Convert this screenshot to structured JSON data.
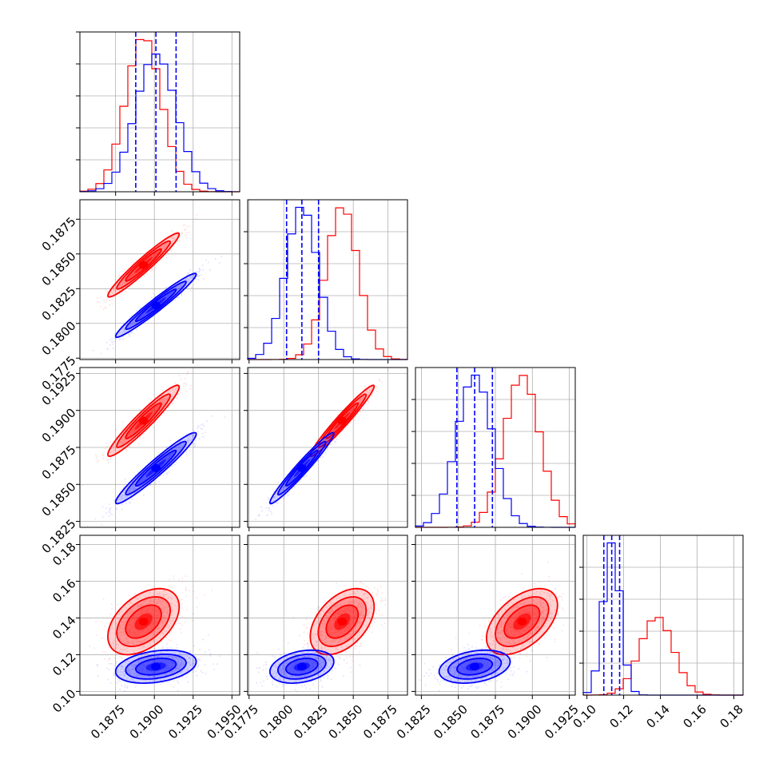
{
  "chart_data": {
    "type": "corner",
    "title": "",
    "grid": true,
    "colors": {
      "red": "#ff0000",
      "blue": "#0000ff",
      "frame": "#000000",
      "grid": "#b0b0b0"
    },
    "parameters": [
      {
        "range": [
          0.1852,
          0.1955
        ],
        "ticks": [
          0.1875,
          0.19,
          0.1925,
          0.195
        ],
        "tick_labels": [
          "0.1875",
          "0.1900",
          "0.1925",
          "0.1950"
        ],
        "y_ticks": [],
        "y_tick_labels": [],
        "blue": {
          "mean": 0.1901,
          "sd": 0.0013
        },
        "red": {
          "mean": 0.1893,
          "sd": 0.00115
        },
        "quantiles_blue": [
          0.1888,
          0.1901,
          0.1914
        ]
      },
      {
        "range": [
          0.1774,
          0.1889
        ],
        "ticks": [
          0.1775,
          0.18,
          0.1825,
          0.185,
          0.1875
        ],
        "tick_labels": [
          "0.1775",
          "0.1800",
          "0.1825",
          "0.1850",
          "0.1875"
        ],
        "y_ticks": [
          0.1775,
          0.18,
          0.1825,
          0.185,
          0.1875
        ],
        "y_tick_labels": [
          "0.1775",
          "0.1800",
          "0.1825",
          "0.1850",
          "0.1875"
        ],
        "blue": {
          "mean": 0.1813,
          "sd": 0.00115
        },
        "red": {
          "mean": 0.1842,
          "sd": 0.00115
        },
        "quantiles_blue": [
          0.1802,
          0.1813,
          0.1825
        ]
      },
      {
        "range": [
          0.1821,
          0.1929
        ],
        "ticks": [
          0.1825,
          0.185,
          0.1875,
          0.19,
          0.1925
        ],
        "tick_labels": [
          "0.1825",
          "0.1850",
          "0.1875",
          "0.1900",
          "0.1925"
        ],
        "y_ticks": [
          0.1825,
          0.185,
          0.1875,
          0.19,
          0.1925
        ],
        "y_tick_labels": [
          "0.1825",
          "0.1850",
          "0.1875",
          "0.1900",
          "0.1925"
        ],
        "blue": {
          "mean": 0.1861,
          "sd": 0.0012
        },
        "red": {
          "mean": 0.1893,
          "sd": 0.0012
        },
        "quantiles_blue": [
          0.1849,
          0.1861,
          0.1873
        ]
      },
      {
        "range": [
          0.098,
          0.185
        ],
        "ticks": [
          0.1,
          0.12,
          0.14,
          0.16,
          0.18
        ],
        "tick_labels": [
          "0.10",
          "0.12",
          "0.14",
          "0.16",
          "0.18"
        ],
        "y_ticks": [
          0.1,
          0.12,
          0.14,
          0.16,
          0.18
        ],
        "y_tick_labels": [
          "0.10",
          "0.12",
          "0.14",
          "0.16",
          "0.18"
        ],
        "blue": {
          "mean": 0.1135,
          "sd": 0.0045
        },
        "red": {
          "mean": 0.138,
          "sd": 0.009
        },
        "quantiles_blue": [
          0.1092,
          0.1135,
          0.1178
        ]
      }
    ],
    "correlations": {
      "blue": {
        "1-0": 0.97,
        "2-0": 0.96,
        "2-1": 0.97,
        "3-0": 0.3,
        "3-1": 0.3,
        "3-2": 0.3
      },
      "red": {
        "1-0": 0.96,
        "2-0": 0.95,
        "2-1": 0.97,
        "3-0": 0.45,
        "3-1": 0.45,
        "3-2": 0.5
      }
    }
  }
}
